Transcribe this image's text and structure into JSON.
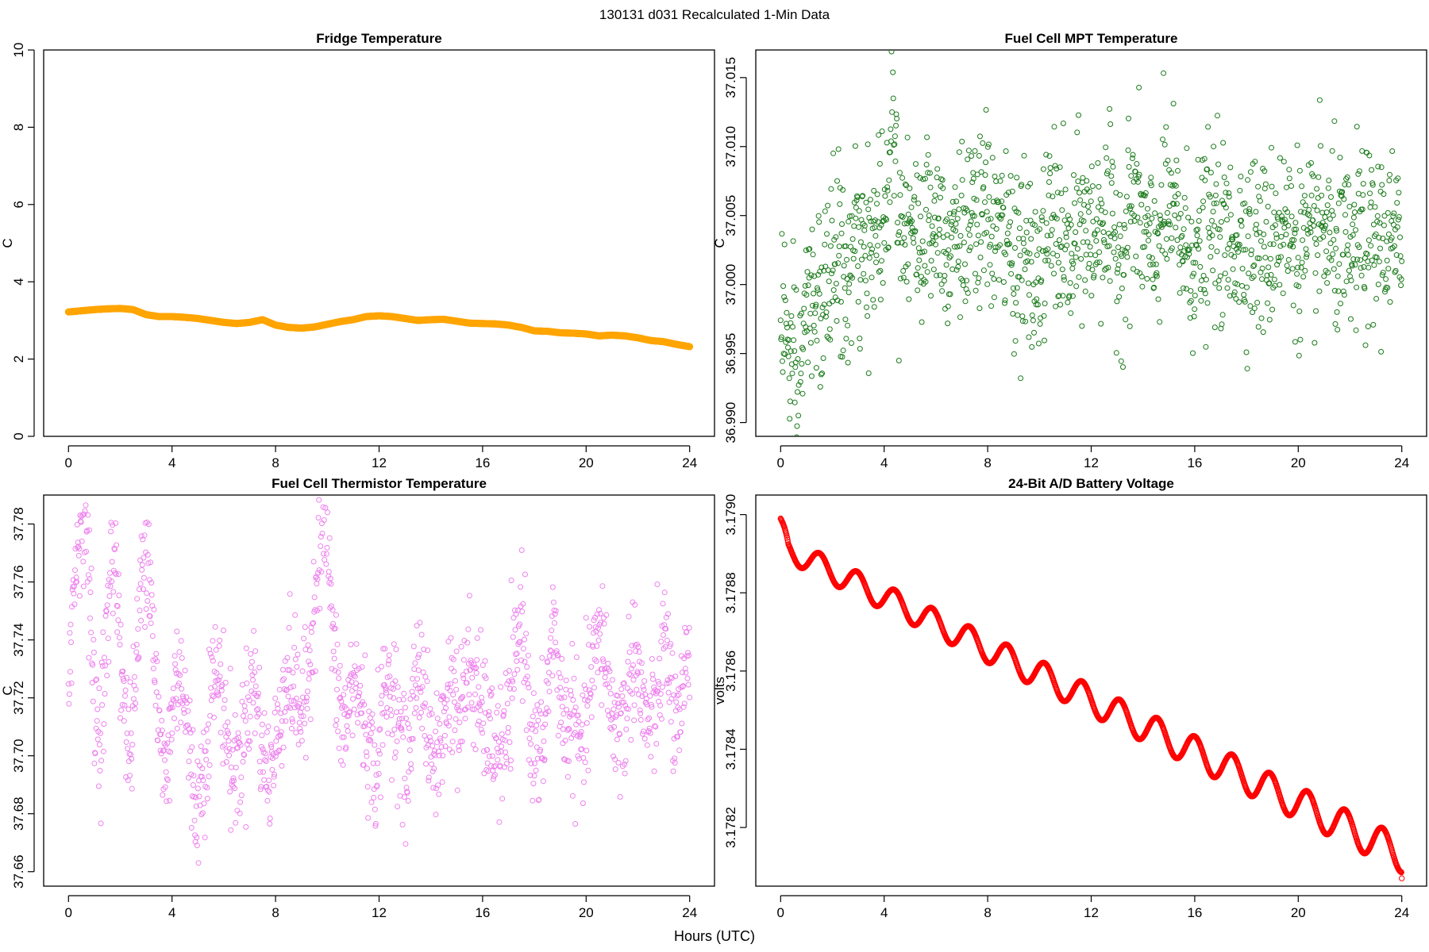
{
  "figure": {
    "suptitle": "130131   d031   Recalculated 1-Min Data",
    "xlabel": "Hours (UTC)"
  },
  "chart_data": [
    {
      "id": "fridge",
      "type": "scatter",
      "title": "Fridge Temperature",
      "ylabel": "C",
      "color": "#FFA500",
      "marker": "filled-dense",
      "xlim": [
        0,
        24
      ],
      "ylim": [
        0,
        10
      ],
      "xticks": [
        0,
        4,
        8,
        12,
        16,
        20,
        24
      ],
      "xtick_labels": [
        "0",
        "4",
        "8",
        "12",
        "16",
        "20",
        "24"
      ],
      "yticks": [
        0,
        2,
        4,
        6,
        8,
        10
      ],
      "ytick_labels": [
        "0",
        "2",
        "4",
        "6",
        "8",
        "10"
      ],
      "x": [
        0,
        0.5,
        1,
        1.5,
        2,
        2.5,
        3,
        3.5,
        4,
        4.5,
        5,
        5.5,
        6,
        6.5,
        7,
        7.5,
        8,
        8.5,
        9,
        9.5,
        10,
        10.5,
        11,
        11.5,
        12,
        12.5,
        13,
        13.5,
        14,
        14.5,
        15,
        15.5,
        16,
        16.5,
        17,
        17.5,
        18,
        18.5,
        19,
        19.5,
        20,
        20.5,
        21,
        21.5,
        22,
        22.5,
        23,
        23.5,
        24
      ],
      "y": [
        3.22,
        3.25,
        3.28,
        3.3,
        3.31,
        3.28,
        3.15,
        3.1,
        3.1,
        3.08,
        3.05,
        3.0,
        2.95,
        2.92,
        2.95,
        3.02,
        2.88,
        2.82,
        2.8,
        2.83,
        2.9,
        2.97,
        3.02,
        3.1,
        3.12,
        3.1,
        3.05,
        3.0,
        3.02,
        3.03,
        2.98,
        2.93,
        2.92,
        2.91,
        2.88,
        2.82,
        2.73,
        2.72,
        2.68,
        2.67,
        2.65,
        2.6,
        2.62,
        2.6,
        2.55,
        2.48,
        2.45,
        2.38,
        2.32
      ]
    },
    {
      "id": "mpt",
      "type": "scatter",
      "title": "Fuel Cell MPT Temperature",
      "ylabel": "C",
      "color": "#1A7A1A",
      "marker": "open-circle",
      "xlim": [
        0,
        24
      ],
      "ylim": [
        36.989,
        37.017
      ],
      "xticks": [
        0,
        4,
        8,
        12,
        16,
        20,
        24
      ],
      "xtick_labels": [
        "0",
        "4",
        "8",
        "12",
        "16",
        "20",
        "24"
      ],
      "yticks": [
        36.99,
        36.995,
        37.0,
        37.005,
        37.01,
        37.015
      ],
      "ytick_labels": [
        "36.990",
        "36.995",
        "37.000",
        "37.005",
        "37.010",
        "37.015"
      ],
      "x": [
        0.1,
        0.3,
        0.5,
        0.6,
        0.7,
        0.8,
        0.9,
        1.1,
        1.3,
        1.6,
        1.9,
        2.2,
        2.5,
        2.9,
        3.2,
        3.5,
        3.8,
        4.1,
        4.3,
        4.6,
        4.9,
        5.2,
        5.6,
        6.0,
        6.4,
        6.8,
        7.2,
        7.6,
        8.0,
        8.4,
        8.8,
        9.2,
        9.6,
        10.0,
        10.4,
        10.8,
        11.2,
        11.6,
        12.0,
        12.4,
        12.8,
        13.2,
        13.6,
        14.0,
        14.4,
        14.8,
        15.2,
        15.6,
        16.0,
        16.4,
        16.8,
        17.2,
        17.6,
        18.0,
        18.4,
        18.8,
        19.2,
        19.6,
        20.0,
        20.4,
        20.8,
        21.2,
        21.6,
        22.0,
        22.4,
        22.8,
        23.2,
        23.6,
        23.9
      ],
      "y": [
        36.9985,
        36.995,
        36.9935,
        36.9926,
        36.9907,
        36.9945,
        36.9975,
        36.9982,
        37.0001,
        36.9972,
        37.0012,
        37.0031,
        36.9992,
        37.0034,
        37.0011,
        37.0021,
        37.0052,
        37.0042,
        37.0156,
        37.0037,
        37.0061,
        37.0031,
        37.0041,
        37.0052,
        37.0033,
        37.0046,
        37.0031,
        37.0042,
        37.0053,
        37.0036,
        37.0032,
        37.0021,
        37.0011,
        37.0003,
        37.0046,
        37.0038,
        37.0012,
        37.0048,
        37.0031,
        37.0052,
        37.0037,
        37.0022,
        37.0063,
        37.0041,
        37.0013,
        37.0059,
        37.0048,
        37.0028,
        37.0021,
        37.0032,
        37.0041,
        37.0029,
        37.0033,
        37.0036,
        37.0027,
        37.0022,
        37.0046,
        37.0037,
        37.0031,
        37.0019,
        37.0043,
        37.0033,
        37.0025,
        37.0016,
        37.0038,
        37.0027,
        37.0034,
        37.0031,
        37.0021
      ]
    },
    {
      "id": "thermistor",
      "type": "scatter",
      "title": "Fuel Cell Thermistor Temperature",
      "ylabel": "C",
      "color": "#EE82EE",
      "marker": "open-circle",
      "xlim": [
        0,
        24
      ],
      "ylim": [
        37.655,
        37.79
      ],
      "xticks": [
        0,
        4,
        8,
        12,
        16,
        20,
        24
      ],
      "xtick_labels": [
        "0",
        "4",
        "8",
        "12",
        "16",
        "20",
        "24"
      ],
      "yticks": [
        37.66,
        37.68,
        37.7,
        37.72,
        37.74,
        37.76,
        37.78
      ],
      "ytick_labels": [
        "37.66",
        "37.68",
        "37.70",
        "37.72",
        "37.74",
        "37.76",
        "37.78"
      ],
      "x": [
        0.05,
        0.2,
        0.35,
        0.5,
        0.65,
        0.8,
        1.0,
        1.2,
        1.4,
        1.6,
        1.8,
        2.0,
        2.2,
        2.4,
        2.6,
        2.8,
        3.0,
        3.2,
        3.4,
        3.6,
        3.8,
        4.0,
        4.3,
        4.6,
        4.9,
        5.2,
        5.6,
        6.0,
        6.4,
        6.8,
        7.2,
        7.6,
        8.0,
        8.4,
        8.8,
        9.2,
        9.5,
        9.8,
        10.0,
        10.3,
        10.7,
        11.1,
        11.5,
        11.9,
        12.3,
        12.7,
        13.1,
        13.5,
        13.9,
        14.3,
        14.7,
        15.1,
        15.5,
        15.9,
        16.3,
        16.7,
        17.1,
        17.5,
        17.9,
        18.3,
        18.7,
        19.1,
        19.5,
        19.9,
        20.3,
        20.7,
        21.1,
        21.5,
        21.9,
        22.3,
        22.7,
        23.1,
        23.5,
        23.9
      ],
      "y": [
        37.735,
        37.745,
        37.76,
        37.775,
        37.785,
        37.765,
        37.73,
        37.715,
        37.725,
        37.745,
        37.762,
        37.74,
        37.72,
        37.715,
        37.73,
        37.75,
        37.765,
        37.75,
        37.725,
        37.71,
        37.705,
        37.715,
        37.72,
        37.705,
        37.695,
        37.7,
        37.715,
        37.72,
        37.705,
        37.7,
        37.72,
        37.708,
        37.7,
        37.715,
        37.73,
        37.725,
        37.745,
        37.77,
        37.78,
        37.74,
        37.705,
        37.715,
        37.72,
        37.7,
        37.71,
        37.72,
        37.705,
        37.725,
        37.7,
        37.715,
        37.72,
        37.7,
        37.745,
        37.72,
        37.69,
        37.705,
        37.73,
        37.74,
        37.7,
        37.715,
        37.74,
        37.7,
        37.725,
        37.705,
        37.72,
        37.745,
        37.72,
        37.7,
        37.735,
        37.725,
        37.71,
        37.73,
        37.715,
        37.735
      ]
    },
    {
      "id": "battery",
      "type": "scatter",
      "title": "24-Bit A/D Battery Voltage",
      "ylabel": "volts",
      "color": "#FF0000",
      "marker": "open-circle-dense",
      "xlim": [
        0,
        24
      ],
      "ylim": [
        3.17805,
        3.17905
      ],
      "xticks": [
        0,
        4,
        8,
        12,
        16,
        20,
        24
      ],
      "xtick_labels": [
        "0",
        "4",
        "8",
        "12",
        "16",
        "20",
        "24"
      ],
      "yticks": [
        3.1782,
        3.1784,
        3.1786,
        3.1788,
        3.179
      ],
      "ytick_labels": [
        "3.1782",
        "3.1784",
        "3.1786",
        "3.1788",
        "3.1790"
      ],
      "trend_start": 3.17892,
      "trend_end": 3.17813,
      "oscillation_period_hours": 1.45,
      "oscillation_amplitude_start": 3e-05,
      "oscillation_amplitude_end": 4.5e-05,
      "first_value": 3.17899,
      "last_value": 3.17807
    }
  ]
}
